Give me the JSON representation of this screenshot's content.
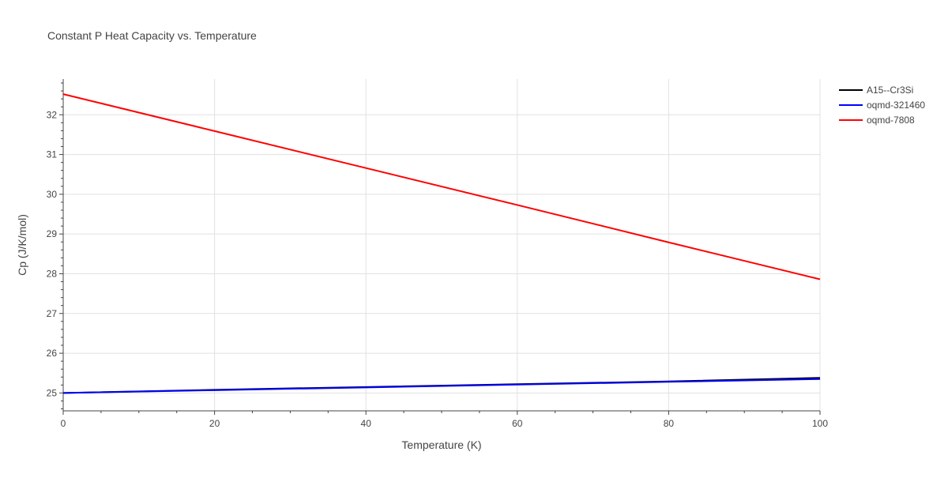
{
  "chart_data": {
    "type": "line",
    "title": "Constant P Heat Capacity vs. Temperature",
    "xlabel": "Temperature (K)",
    "ylabel": "Cp (J/K/mol)",
    "xlim": [
      0,
      100
    ],
    "ylim": [
      24.55,
      32.9
    ],
    "xticks": [
      0,
      20,
      40,
      60,
      80,
      100
    ],
    "yticks": [
      25,
      26,
      27,
      28,
      29,
      30,
      31,
      32
    ],
    "grid": true,
    "legend_position": "top-right",
    "series": [
      {
        "name": "A15--Cr3Si",
        "color": "#000000",
        "x": [
          0,
          20,
          40,
          60,
          80,
          100
        ],
        "y": [
          25.0,
          25.08,
          25.15,
          25.22,
          25.29,
          25.38
        ]
      },
      {
        "name": "oqmd-321460",
        "color": "#0000ff",
        "x": [
          0,
          20,
          40,
          60,
          80,
          100
        ],
        "y": [
          25.0,
          25.07,
          25.14,
          25.21,
          25.28,
          25.35
        ]
      },
      {
        "name": "oqmd-7808",
        "color": "#ff0000",
        "x": [
          0,
          20,
          40,
          60,
          80,
          100
        ],
        "y": [
          32.52,
          31.59,
          30.66,
          29.73,
          28.79,
          27.86
        ]
      }
    ]
  }
}
